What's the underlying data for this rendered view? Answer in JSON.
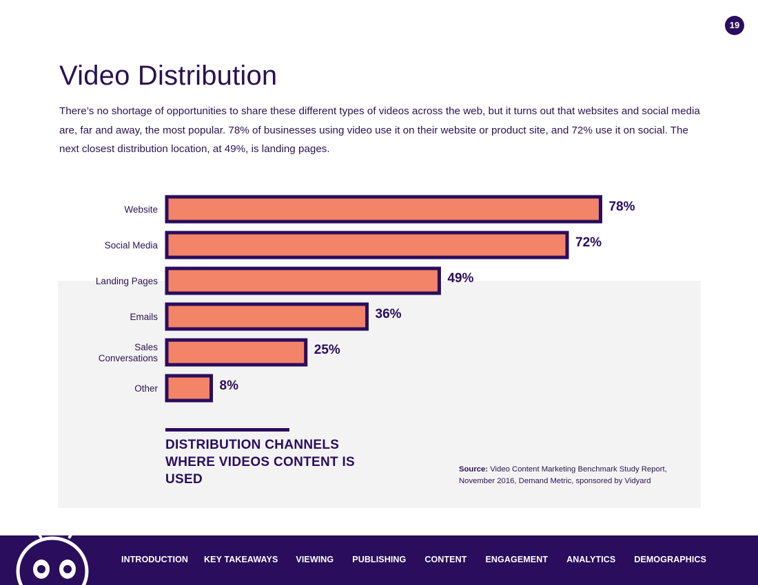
{
  "page": {
    "number": "19",
    "title": "Video Distribution",
    "intro": "There’s no shortage of opportunities to share these different types of videos across the web, but it turns out that websites and social media are, far and away, the most popular. 78% of businesses using video use it on their website or product site, and 72% use it on social. The next closest distribution location, at 49%, is landing pages."
  },
  "colors": {
    "bar_fill": "#f38468",
    "bar_stroke": "#2a0d5c",
    "text": "#2a1250",
    "footer_bg": "#2a0d5c",
    "panel_bg": "#f3f3f3"
  },
  "chart_data": {
    "type": "bar",
    "orientation": "horizontal",
    "categories": [
      "Website",
      "Social Media",
      "Landing Pages",
      "Emails",
      "Sales Conversations",
      "Other"
    ],
    "category_lines": [
      [
        "Website"
      ],
      [
        "Social Media"
      ],
      [
        "Landing Pages"
      ],
      [
        "Emails"
      ],
      [
        "Sales",
        "Conversations"
      ],
      [
        "Other"
      ]
    ],
    "values": [
      78,
      72,
      49,
      36,
      25,
      8
    ],
    "value_labels": [
      "78%",
      "72%",
      "49%",
      "36%",
      "25%",
      "8%"
    ],
    "xlim": [
      0,
      100
    ],
    "grid": false,
    "legend": "none",
    "caption": "DISTRIBUTION CHANNELS WHERE VIDEOS CONTENT IS USED"
  },
  "source": {
    "label": "Source:",
    "text": "Video Content Marketing Benchmark Study Report, November 2016, Demand Metric, sponsored by Vidyard"
  },
  "footer": {
    "nav": [
      "INTRODUCTION",
      "KEY TAKEAWAYS",
      "VIEWING",
      "PUBLISHING",
      "CONTENT",
      "ENGAGEMENT",
      "ANALYTICS",
      "DEMOGRAPHICS"
    ],
    "mascot_icon": "robot-mascot-icon"
  }
}
